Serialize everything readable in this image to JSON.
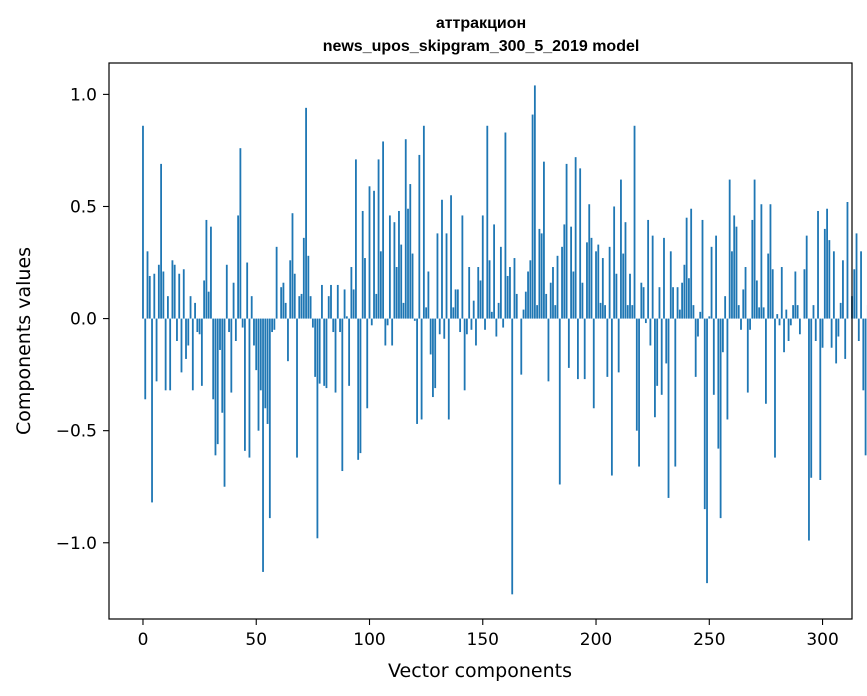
{
  "chart_data": {
    "type": "bar",
    "title": "аттракцион",
    "subtitle": "news_upos_skipgram_300_5_2019 model",
    "xlabel": "Vector components",
    "ylabel": "Components values",
    "xlim": [
      -15,
      313
    ],
    "ylim": [
      -1.34,
      1.14
    ],
    "xticks": [
      0,
      50,
      100,
      150,
      200,
      250,
      300
    ],
    "yticks": [
      -1.0,
      -0.5,
      0.0,
      0.5,
      1.0
    ],
    "ytick_labels": [
      "−1.0",
      "−0.5",
      "0.0",
      "0.5",
      "1.0"
    ],
    "color": "#1f77b4",
    "values": [
      0.86,
      -0.36,
      0.3,
      0.19,
      -0.82,
      0.2,
      -0.28,
      0.24,
      0.69,
      0.21,
      -0.32,
      0.1,
      -0.32,
      0.26,
      0.24,
      -0.1,
      0.2,
      -0.24,
      0.22,
      -0.18,
      -0.12,
      0.1,
      -0.32,
      0.07,
      -0.06,
      -0.07,
      -0.3,
      0.17,
      0.44,
      0.12,
      0.41,
      -0.36,
      -0.61,
      -0.56,
      -0.14,
      -0.42,
      -0.75,
      0.24,
      -0.06,
      -0.33,
      0.16,
      -0.1,
      0.46,
      0.76,
      -0.04,
      -0.59,
      0.25,
      -0.62,
      0.1,
      -0.12,
      -0.23,
      -0.5,
      -0.32,
      -1.13,
      -0.4,
      -0.47,
      -0.89,
      -0.06,
      -0.05,
      0.32,
      0.0,
      0.14,
      0.16,
      0.07,
      -0.19,
      0.26,
      0.47,
      0.2,
      -0.62,
      0.1,
      0.11,
      0.36,
      0.94,
      0.28,
      0.1,
      -0.04,
      -0.26,
      -0.98,
      -0.29,
      0.15,
      -0.3,
      -0.31,
      0.1,
      0.15,
      -0.06,
      -0.33,
      0.15,
      -0.06,
      -0.68,
      0.13,
      0.01,
      -0.3,
      0.23,
      0.13,
      0.71,
      -0.63,
      -0.6,
      0.48,
      0.27,
      -0.4,
      0.59,
      -0.03,
      0.57,
      0.11,
      0.71,
      0.3,
      0.79,
      -0.12,
      -0.03,
      0.46,
      -0.12,
      0.43,
      0.23,
      0.48,
      0.33,
      0.07,
      0.8,
      0.49,
      0.6,
      0.29,
      -0.01,
      -0.47,
      0.73,
      -0.45,
      0.86,
      0.05,
      0.21,
      -0.16,
      -0.35,
      -0.31,
      0.38,
      -0.07,
      0.53,
      -0.09,
      0.38,
      -0.45,
      0.55,
      0.05,
      0.13,
      0.13,
      -0.06,
      0.46,
      -0.32,
      -0.07,
      0.23,
      -0.05,
      0.08,
      -0.12,
      0.23,
      0.17,
      0.46,
      -0.05,
      0.86,
      0.26,
      0.03,
      0.42,
      -0.08,
      0.07,
      0.32,
      -0.04,
      0.83,
      0.19,
      0.23,
      -1.23,
      0.27,
      0.11,
      0.0,
      -0.25,
      0.04,
      0.12,
      0.21,
      0.26,
      0.91,
      1.04,
      0.06,
      0.4,
      0.38,
      0.7,
      0.11,
      -0.28,
      0.16,
      0.23,
      0.06,
      0.28,
      -0.74,
      0.32,
      0.42,
      0.69,
      -0.22,
      0.41,
      0.21,
      0.72,
      -0.27,
      0.67,
      0.16,
      -0.27,
      0.34,
      0.51,
      0.36,
      -0.4,
      0.3,
      0.33,
      0.07,
      0.27,
      0.06,
      -0.26,
      0.32,
      -0.7,
      0.5,
      0.2,
      -0.24,
      0.62,
      0.29,
      0.43,
      0.06,
      0.2,
      0.06,
      0.86,
      -0.5,
      -0.66,
      0.16,
      0.14,
      -0.02,
      0.44,
      -0.12,
      0.37,
      -0.44,
      -0.3,
      0.14,
      -0.34,
      0.36,
      -0.2,
      -0.8,
      0.3,
      0.14,
      -0.66,
      0.14,
      0.04,
      0.16,
      0.24,
      0.45,
      0.18,
      0.49,
      0.06,
      -0.26,
      -0.08,
      0.03,
      0.44,
      -0.85,
      -1.18,
      0.01,
      0.32,
      -0.34,
      0.37,
      -0.58,
      -0.89,
      -0.15,
      0.1,
      -0.45,
      0.62,
      0.3,
      0.46,
      0.41,
      0.06,
      -0.05,
      0.13,
      0.23,
      -0.33,
      -0.05,
      0.44,
      0.62,
      0.17,
      0.05,
      0.51,
      0.05,
      -0.38,
      0.29,
      0.51,
      0.22,
      -0.62,
      0.02,
      -0.03,
      0.23,
      -0.15,
      0.04,
      -0.1,
      -0.03,
      0.06,
      0.21,
      0.06,
      -0.07,
      0.0,
      0.22,
      0.37,
      -0.99,
      -0.71,
      0.06,
      -0.1,
      0.48,
      -0.72,
      -0.13,
      0.4,
      0.49,
      0.35,
      -0.13,
      0.3,
      -0.2,
      -0.08,
      0.07,
      0.26,
      -0.18,
      0.52,
      0.0,
      0.1,
      0.22,
      0.38,
      -0.1,
      0.3,
      -0.32,
      -0.61,
      0.06,
      0.05,
      0.36,
      0.03,
      0.36,
      -0.51,
      0.12,
      0.47,
      -0.06,
      0.2,
      -0.03,
      0.26,
      0.55,
      -0.47,
      -0.07,
      0.28,
      -0.4,
      0.06,
      0.1,
      0.35,
      -0.17,
      0.42,
      0.07,
      -0.1,
      0.3,
      0.22,
      0.06,
      0.15,
      -0.02,
      0.32,
      0.06,
      -0.15,
      0.05,
      0.51,
      -0.27,
      0.63,
      0.5,
      -0.73,
      0.02,
      0.43,
      0.43,
      -0.56,
      -0.25,
      0.22,
      -0.18,
      -0.33
    ]
  }
}
